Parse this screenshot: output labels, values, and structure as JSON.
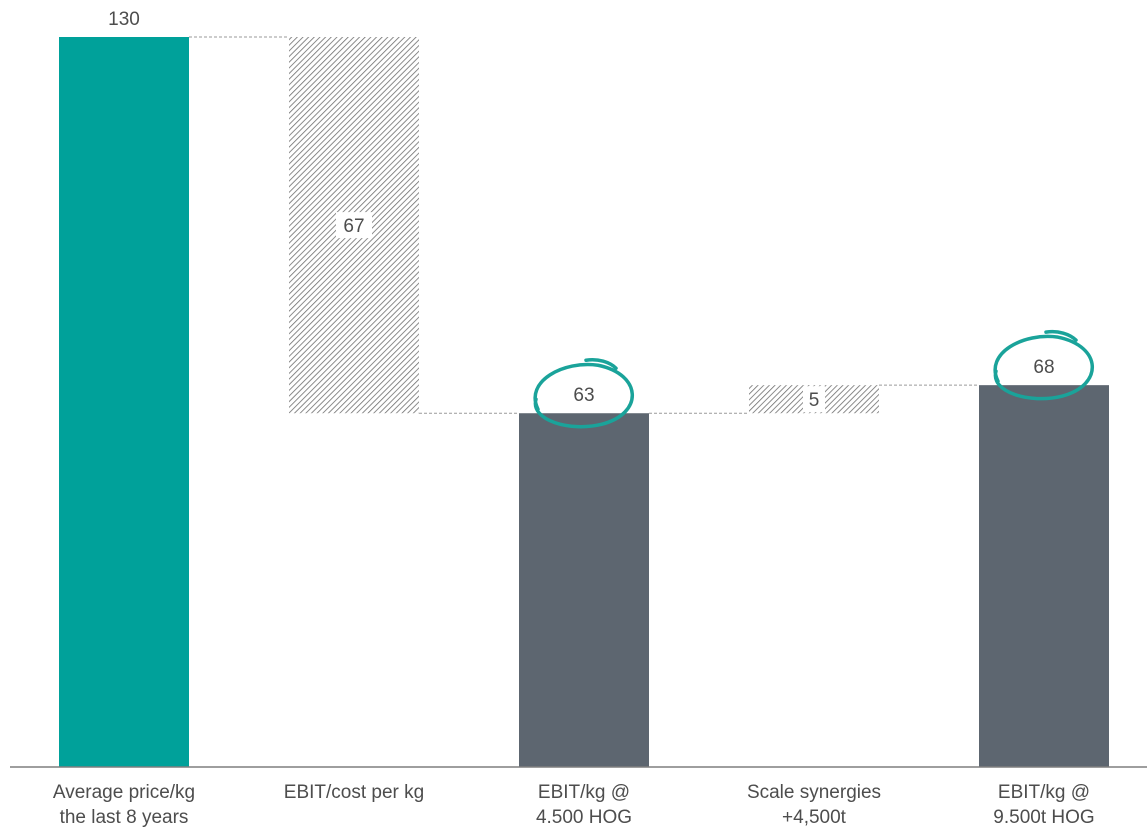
{
  "chart_data": {
    "type": "bar",
    "subtype": "waterfall",
    "categories": [
      [
        "Average price/kg",
        "the last 8 years"
      ],
      [
        "EBIT/cost per kg"
      ],
      [
        "EBIT/kg @",
        "4.500 HOG"
      ],
      [
        "Scale synergies",
        "+4,500t"
      ],
      [
        "EBIT/kg @",
        "9.500t HOG"
      ]
    ],
    "bars": [
      {
        "kind": "total",
        "base": 0,
        "top": 130,
        "label": "130",
        "color": "#00a19a",
        "pattern": "solid"
      },
      {
        "kind": "decrease",
        "base": 63,
        "top": 130,
        "label": "67",
        "color": "#8c8c8c",
        "pattern": "hatched"
      },
      {
        "kind": "total",
        "base": 0,
        "top": 63,
        "label": "63",
        "color": "#5d6670",
        "pattern": "solid",
        "circled": true
      },
      {
        "kind": "increase",
        "base": 63,
        "top": 68,
        "label": "5",
        "color": "#8c8c8c",
        "pattern": "hatched"
      },
      {
        "kind": "total",
        "base": 0,
        "top": 68,
        "label": "68",
        "color": "#5d6670",
        "pattern": "solid",
        "circled": true
      }
    ],
    "ylim": [
      0,
      130
    ],
    "grid": false,
    "legend": "none",
    "annotation_color": "#1aa39a",
    "connector_color": "#9a9a9a",
    "axis_color": "#7f7f7f"
  }
}
